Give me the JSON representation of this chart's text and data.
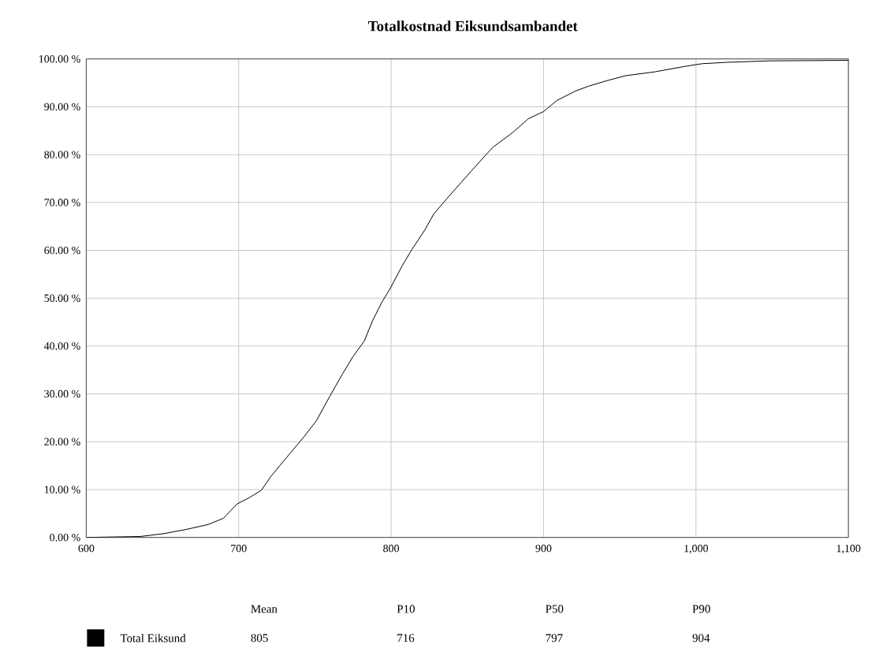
{
  "chart_data": {
    "type": "line",
    "title": "Totalkostnad Eiksundsambandet",
    "x": [
      600,
      635.6,
      651,
      666,
      680,
      690,
      699,
      707.5,
      715,
      721,
      727,
      734.6,
      743,
      751,
      759.6,
      768,
      775,
      782.5,
      787.7,
      794,
      799,
      807.5,
      813.7,
      822,
      828,
      836,
      846,
      852.7,
      862,
      867,
      879.7,
      890,
      900,
      908.7,
      921,
      929.5,
      942,
      954,
      973,
      993.8,
      1004,
      1020.7,
      1048.8,
      1100
    ],
    "series": [
      {
        "name": "Total Eiksund",
        "color": "#000000",
        "values": [
          0,
          0.2,
          0.8,
          1.7,
          2.7,
          4.0,
          7.0,
          8.4,
          9.9,
          12.7,
          15.0,
          17.9,
          21.1,
          24.4,
          29.4,
          34.1,
          37.8,
          41.1,
          45.2,
          49.2,
          51.8,
          56.9,
          60.2,
          64.2,
          67.6,
          70.6,
          74.2,
          76.6,
          79.9,
          81.6,
          84.6,
          87.5,
          89.0,
          91.3,
          93.3,
          94.3,
          95.5,
          96.5,
          97.3,
          98.5,
          99.0,
          99.3,
          99.6,
          99.7
        ]
      }
    ],
    "xlim": [
      600,
      1100
    ],
    "xticks": [
      600,
      700,
      800,
      900,
      {
        "value": 1000,
        "label": "1,000"
      },
      {
        "value": 1100,
        "label": "1,100"
      }
    ],
    "ylim": [
      0,
      100
    ],
    "yticks": [
      {
        "value": 0,
        "label": "0.00 %"
      },
      {
        "value": 10,
        "label": "10.00 %"
      },
      {
        "value": 20,
        "label": "20.00 %"
      },
      {
        "value": 30,
        "label": "30.00 %"
      },
      {
        "value": 40,
        "label": "40.00 %"
      },
      {
        "value": 50,
        "label": "50.00 %"
      },
      {
        "value": 60,
        "label": "60.00 %"
      },
      {
        "value": 70,
        "label": "70.00 %"
      },
      {
        "value": 80,
        "label": "80.00 %"
      },
      {
        "value": 90,
        "label": "90.00 %"
      },
      {
        "value": 100,
        "label": "100.00 %"
      }
    ],
    "grid": true,
    "legend": "bottom",
    "annotations": [
      "Mean",
      "P10",
      "P50",
      "P90",
      "805",
      "716",
      "797",
      "904"
    ]
  }
}
